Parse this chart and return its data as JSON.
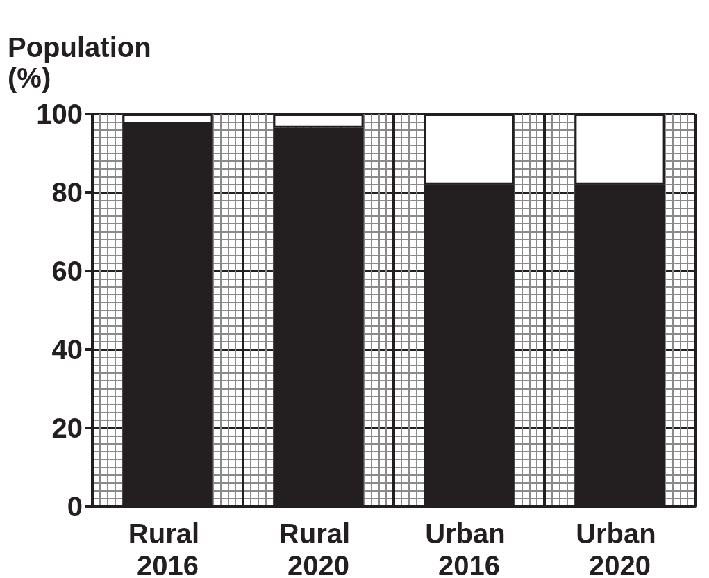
{
  "chart_data": {
    "type": "bar",
    "ylabel": "Population (%)",
    "categories": [
      "Rural 2016",
      "Rural 2020",
      "Urban 2016",
      "Urban 2020"
    ],
    "stacked": true,
    "series": [
      {
        "color": "#231f20",
        "values": [
          97.5,
          96.5,
          82,
          82
        ]
      },
      {
        "color": "#ffffff",
        "values": [
          2.5,
          3.5,
          18,
          18
        ]
      }
    ],
    "ylim": [
      0,
      100
    ],
    "yticks": [
      0,
      20,
      40,
      60,
      80,
      100
    ],
    "grid": true
  }
}
